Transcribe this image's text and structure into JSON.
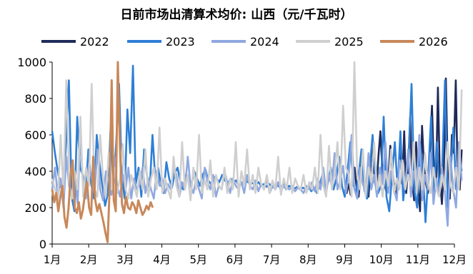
{
  "chart_data": {
    "type": "line",
    "title": "日前市场出清算术均价: 山西（元/千瓦时）",
    "xlabel": "",
    "ylabel": "",
    "ylim": [
      0,
      1000
    ],
    "yticks": [
      0,
      200,
      400,
      600,
      800,
      1000
    ],
    "x_categories": [
      "1月",
      "2月",
      "3月",
      "4月",
      "5月",
      "6月",
      "7月",
      "8月",
      "9月",
      "10月",
      "11月",
      "12月"
    ],
    "grid": false,
    "legend_position": "top",
    "series": [
      {
        "name": "2022",
        "color": "#1f2a5a",
        "start_month": 8.0,
        "end_month": 11.2,
        "points": [
          300,
          280,
          330,
          270,
          360,
          420,
          310,
          260,
          380,
          520,
          340,
          300,
          260,
          420,
          580,
          350,
          300,
          480,
          620,
          400,
          330,
          290,
          360,
          540,
          410,
          300,
          260,
          390,
          500,
          330,
          620,
          280,
          420,
          700,
          350,
          240,
          560,
          300,
          180,
          650,
          420,
          330,
          280,
          520,
          760,
          400,
          300,
          860,
          360,
          220,
          420,
          910,
          380,
          250,
          600,
          500,
          900,
          330,
          300,
          520
        ]
      },
      {
        "name": "2023",
        "color": "#2e7fd6",
        "start_month": 0.0,
        "end_month": 11.2,
        "points": [
          620,
          500,
          400,
          320,
          280,
          560,
          900,
          260,
          180,
          700,
          420,
          380,
          280,
          520,
          330,
          250,
          600,
          440,
          320,
          210,
          280,
          650,
          300,
          560,
          880,
          380,
          250,
          740,
          500,
          980,
          330,
          420,
          260,
          520,
          380,
          300,
          600,
          360,
          420,
          330,
          280,
          450,
          360,
          310,
          390,
          420,
          340,
          300,
          380,
          350,
          330,
          400,
          360,
          320,
          380,
          410,
          350,
          330,
          370,
          360,
          340,
          380,
          350,
          330,
          360,
          340,
          350,
          320,
          340,
          330,
          345,
          330,
          335,
          325,
          340,
          320,
          330,
          315,
          330,
          310,
          325,
          320,
          310,
          330,
          300,
          320,
          310,
          305,
          315,
          300,
          310,
          300,
          320,
          290,
          310,
          280,
          330,
          380,
          290,
          340,
          420,
          300,
          360,
          480,
          320,
          260,
          400,
          560,
          330,
          280,
          380,
          520,
          300,
          250,
          420,
          600,
          350,
          280,
          320,
          700,
          260,
          180,
          380,
          560,
          300,
          620,
          240,
          380,
          480,
          880,
          300,
          200,
          560,
          420,
          120,
          380,
          700,
          250,
          560,
          300,
          420,
          900,
          200,
          380,
          640,
          300,
          500,
          400
        ]
      },
      {
        "name": "2024",
        "color": "#8fa8e0",
        "start_month": 0.0,
        "end_month": 11.2,
        "points": [
          300,
          420,
          260,
          360,
          200,
          480,
          320,
          260,
          380,
          220,
          600,
          300,
          250,
          440,
          360,
          280,
          520,
          300,
          240,
          400,
          350,
          270,
          480,
          320,
          260,
          380,
          300,
          420,
          250,
          360,
          300,
          330,
          420,
          280,
          360,
          300,
          250,
          400,
          320,
          360,
          280,
          330,
          300,
          420,
          380,
          260,
          340,
          300,
          480,
          320,
          280,
          360,
          300,
          250,
          420,
          340,
          300,
          380,
          260,
          320,
          300,
          400,
          340,
          280,
          360,
          320,
          300,
          340,
          280,
          380,
          320,
          300,
          350,
          290,
          330,
          300,
          360,
          280,
          320,
          300,
          340,
          290,
          320,
          310,
          300,
          320,
          290,
          310,
          300,
          280,
          320,
          300,
          340,
          290,
          360,
          300,
          420,
          280,
          380,
          320,
          500,
          300,
          350,
          430,
          280,
          380,
          600,
          300,
          250,
          420,
          330,
          280,
          500,
          300,
          380,
          260,
          420,
          330,
          560,
          280,
          400,
          300,
          240,
          460,
          380,
          300,
          520,
          260,
          400,
          320,
          600,
          240,
          380,
          300,
          500,
          220,
          360,
          280,
          420,
          300,
          100,
          480,
          300,
          200,
          560,
          350
        ]
      },
      {
        "name": "2025",
        "color": "#cfcfcf",
        "start_month": 0.0,
        "end_month": 11.2,
        "points": [
          360,
          300,
          240,
          600,
          280,
          900,
          350,
          250,
          400,
          300,
          700,
          260,
          420,
          320,
          880,
          300,
          260,
          600,
          360,
          260,
          500,
          300,
          420,
          280,
          360,
          550,
          300,
          250,
          380,
          320,
          260,
          400,
          300,
          520,
          260,
          360,
          420,
          300,
          640,
          280,
          360,
          300,
          250,
          480,
          320,
          260,
          560,
          300,
          380,
          240,
          420,
          300,
          600,
          280,
          350,
          300,
          460,
          260,
          380,
          320,
          300,
          420,
          280,
          360,
          300,
          560,
          260,
          400,
          320,
          520,
          300,
          380,
          280,
          420,
          330,
          300,
          380,
          280,
          350,
          300,
          480,
          270,
          360,
          300,
          420,
          280,
          360,
          320,
          300,
          380,
          280,
          340,
          300,
          420,
          280,
          600,
          320,
          260,
          540,
          300,
          380,
          560,
          300,
          760,
          420,
          380,
          260,
          1000,
          380,
          300,
          520,
          260,
          420,
          340,
          560,
          300,
          380,
          260,
          400,
          320,
          520,
          280,
          360,
          300,
          460,
          300,
          380,
          320,
          560,
          280,
          420,
          300,
          500,
          340,
          280,
          420,
          300,
          260,
          380,
          300,
          560,
          320,
          280,
          420,
          300,
          850
        ]
      },
      {
        "name": "2026",
        "color": "#c8885a",
        "start_month": 0.0,
        "end_month": 2.75,
        "points": [
          300,
          230,
          280,
          180,
          260,
          320,
          150,
          90,
          200,
          380,
          460,
          200,
          170,
          230,
          140,
          190,
          280,
          340,
          200,
          160,
          480,
          240,
          180,
          220,
          170,
          120,
          60,
          10,
          300,
          900,
          240,
          180,
          1000,
          540,
          220,
          170,
          260,
          200,
          190,
          230,
          210,
          170,
          240,
          200,
          160,
          180,
          210,
          190,
          230,
          200
        ]
      }
    ]
  }
}
